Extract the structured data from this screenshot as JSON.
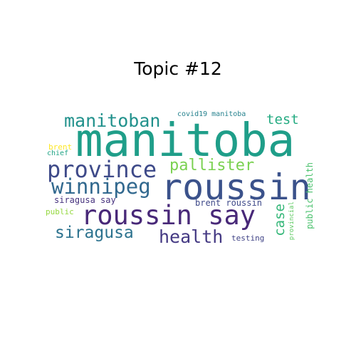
{
  "title": "Topic #12",
  "words": [
    {
      "text": "manitoba",
      "color": "#1f9e89"
    },
    {
      "text": "roussin",
      "color": "#3b528b"
    },
    {
      "text": "roussin say",
      "color": "#482878"
    },
    {
      "text": "province",
      "color": "#3e4a89"
    },
    {
      "text": "winnipeg",
      "color": "#31688e"
    },
    {
      "text": "manitoban",
      "color": "#21918c"
    },
    {
      "text": "siragusa",
      "color": "#2c728e"
    },
    {
      "text": "health",
      "color": "#443983"
    },
    {
      "text": "pallister",
      "color": "#7ad151"
    },
    {
      "text": "test",
      "color": "#25ab82"
    },
    {
      "text": "case",
      "color": "#35b779"
    },
    {
      "text": "public health",
      "color": "#4ac16d"
    },
    {
      "text": "covid19 manitoba",
      "color": "#26828e"
    },
    {
      "text": "brent roussin",
      "color": "#3e4989"
    },
    {
      "text": "siragusa say",
      "color": "#46327e"
    },
    {
      "text": "testing",
      "color": "#414487"
    },
    {
      "text": "provincial",
      "color": "#5ec962"
    },
    {
      "text": "brent",
      "color": "#fde725"
    },
    {
      "text": "chief",
      "color": "#20a486"
    },
    {
      "text": "public",
      "color": "#95d840"
    }
  ]
}
